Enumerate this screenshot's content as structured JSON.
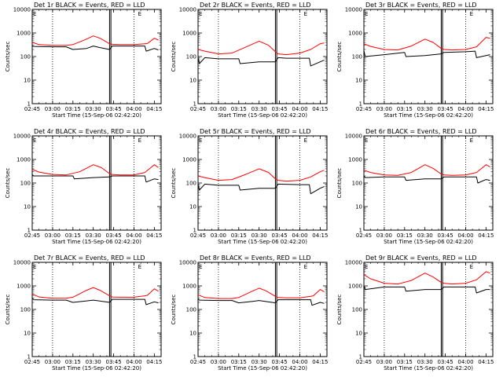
{
  "shared": {
    "title_suffix": " BLACK = Events, RED = LLD",
    "xlabel": "Start Time (15-Sep-06 02:42:20)",
    "ylabel": "Counts/sec",
    "x_tick_labels": [
      "02:45",
      "03:00",
      "03:15",
      "03:30",
      "03:45",
      "04:00",
      "04:15"
    ],
    "y_tick_labels": [
      "1",
      "10",
      "100",
      "1000",
      "10000"
    ],
    "corner_mark": "E",
    "colors": {
      "events": "#000000",
      "lld": "#ff0000",
      "markers": "#000000"
    }
  },
  "chart_data": [
    {
      "type": "line",
      "detector": "Det 1r",
      "title": "Det 1r BLACK = Events, RED = LLD",
      "xlabel": "Start Time (15-Sep-06 02:42:20)",
      "ylabel": "Counts/sec",
      "x_unit": "time",
      "xlim": [
        "02:45",
        "04:20"
      ],
      "ylim": [
        1,
        10000
      ],
      "y_scale": "log",
      "vertical_dotted_lines": [
        "03:00",
        "04:00"
      ],
      "vertical_solid_lines": [
        "03:42",
        "03:43"
      ],
      "series": [
        {
          "color": "#ff0000",
          "x": [
            "02:45",
            "02:50",
            "03:00",
            "03:10",
            "03:15",
            "03:25",
            "03:30",
            "03:35",
            "03:42",
            "03:44",
            "03:50",
            "04:00",
            "04:08",
            "04:10",
            "04:15",
            "04:18"
          ],
          "values": [
            400,
            320,
            300,
            300,
            320,
            550,
            750,
            600,
            350,
            330,
            320,
            320,
            350,
            360,
            600,
            500
          ]
        },
        {
          "color": "#000000",
          "x": [
            "02:45",
            "02:46",
            "03:00",
            "03:10",
            "03:15",
            "03:25",
            "03:30",
            "03:35",
            "03:42",
            "03:44",
            "03:50",
            "04:00",
            "04:08",
            "04:09",
            "04:15",
            "04:18"
          ],
          "values": [
            280,
            270,
            260,
            260,
            200,
            220,
            280,
            240,
            200,
            280,
            280,
            280,
            280,
            170,
            220,
            190
          ]
        }
      ]
    },
    {
      "type": "line",
      "detector": "Det 2r",
      "title": "Det 2r BLACK = Events, RED = LLD",
      "xlabel": "Start Time (15-Sep-06 02:42:20)",
      "ylabel": "Counts/sec",
      "x_unit": "time",
      "xlim": [
        "02:45",
        "04:20"
      ],
      "ylim": [
        1,
        10000
      ],
      "y_scale": "log",
      "vertical_dotted_lines": [
        "03:00",
        "04:00"
      ],
      "vertical_solid_lines": [
        "03:42",
        "03:43"
      ],
      "series": [
        {
          "color": "#ff0000",
          "x": [
            "02:45",
            "02:50",
            "03:00",
            "03:10",
            "03:20",
            "03:30",
            "03:37",
            "03:42",
            "03:44",
            "03:50",
            "04:00",
            "04:08",
            "04:15",
            "04:18"
          ],
          "values": [
            200,
            170,
            130,
            140,
            250,
            450,
            300,
            160,
            130,
            120,
            140,
            200,
            350,
            380
          ]
        },
        {
          "color": "#000000",
          "x": [
            "02:45",
            "02:46",
            "02:50",
            "03:00",
            "03:15",
            "03:16",
            "03:30",
            "03:42",
            "03:44",
            "03:50",
            "04:00",
            "04:07",
            "04:08",
            "04:15",
            "04:18"
          ],
          "values": [
            90,
            50,
            90,
            80,
            80,
            50,
            60,
            60,
            90,
            85,
            85,
            85,
            40,
            60,
            70
          ]
        }
      ]
    },
    {
      "type": "line",
      "detector": "Det 3r",
      "title": "Det 3r BLACK = Events, RED = LLD",
      "xlabel": "Start Time (15-Sep-06 02:42:20)",
      "ylabel": "Counts/sec",
      "x_unit": "time",
      "xlim": [
        "02:45",
        "04:20"
      ],
      "ylim": [
        1,
        10000
      ],
      "y_scale": "log",
      "vertical_dotted_lines": [
        "03:00",
        "04:00"
      ],
      "vertical_solid_lines": [
        "03:42",
        "03:43"
      ],
      "series": [
        {
          "color": "#ff0000",
          "x": [
            "02:45",
            "02:50",
            "03:00",
            "03:10",
            "03:20",
            "03:30",
            "03:36",
            "03:42",
            "03:44",
            "03:50",
            "04:00",
            "04:08",
            "04:15",
            "04:18"
          ],
          "values": [
            350,
            270,
            200,
            190,
            280,
            550,
            400,
            220,
            200,
            190,
            200,
            260,
            650,
            600
          ]
        },
        {
          "color": "#000000",
          "x": [
            "02:45",
            "02:46",
            "03:00",
            "03:15",
            "03:16",
            "03:30",
            "03:42",
            "03:44",
            "04:00",
            "04:07",
            "04:08",
            "04:15",
            "04:18"
          ],
          "values": [
            180,
            100,
            120,
            150,
            100,
            110,
            130,
            150,
            160,
            170,
            90,
            110,
            120
          ]
        }
      ]
    },
    {
      "type": "line",
      "detector": "Det 4r",
      "title": "Det 4r BLACK = Events, RED = LLD",
      "xlabel": "Start Time (15-Sep-06 02:42:20)",
      "ylabel": "Counts/sec",
      "x_unit": "time",
      "xlim": [
        "02:45",
        "04:20"
      ],
      "ylim": [
        1,
        10000
      ],
      "y_scale": "log",
      "vertical_dotted_lines": [
        "03:00",
        "04:00"
      ],
      "vertical_solid_lines": [
        "03:42",
        "03:43"
      ],
      "series": [
        {
          "color": "#ff0000",
          "x": [
            "02:45",
            "02:50",
            "03:00",
            "03:10",
            "03:20",
            "03:30",
            "03:36",
            "03:42",
            "03:44",
            "03:50",
            "04:00",
            "04:08",
            "04:15",
            "04:18"
          ],
          "values": [
            380,
            290,
            230,
            220,
            300,
            600,
            450,
            250,
            230,
            220,
            220,
            280,
            600,
            450
          ]
        },
        {
          "color": "#000000",
          "x": [
            "02:45",
            "02:46",
            "03:00",
            "03:15",
            "03:16",
            "03:30",
            "03:42",
            "03:44",
            "04:00",
            "04:08",
            "04:09",
            "04:15",
            "04:18"
          ],
          "values": [
            230,
            200,
            200,
            200,
            150,
            170,
            180,
            200,
            200,
            200,
            110,
            150,
            140
          ]
        }
      ]
    },
    {
      "type": "line",
      "detector": "Det 5r",
      "title": "Det 5r BLACK = Events, RED = LLD",
      "xlabel": "Start Time (15-Sep-06 02:42:20)",
      "ylabel": "Counts/sec",
      "x_unit": "time",
      "xlim": [
        "02:45",
        "04:20"
      ],
      "ylim": [
        1,
        10000
      ],
      "y_scale": "log",
      "vertical_dotted_lines": [
        "03:00",
        "04:00"
      ],
      "vertical_solid_lines": [
        "03:42",
        "03:43"
      ],
      "series": [
        {
          "color": "#ff0000",
          "x": [
            "02:45",
            "02:50",
            "03:00",
            "03:10",
            "03:20",
            "03:30",
            "03:37",
            "03:42",
            "03:44",
            "03:50",
            "04:00",
            "04:08",
            "04:15",
            "04:18"
          ],
          "values": [
            200,
            170,
            130,
            140,
            230,
            400,
            280,
            150,
            130,
            120,
            130,
            180,
            300,
            350
          ]
        },
        {
          "color": "#000000",
          "x": [
            "02:45",
            "02:46",
            "02:50",
            "03:00",
            "03:15",
            "03:16",
            "03:30",
            "03:42",
            "03:44",
            "04:00",
            "04:07",
            "04:08",
            "04:15",
            "04:18"
          ],
          "values": [
            90,
            50,
            90,
            80,
            80,
            50,
            60,
            60,
            90,
            85,
            85,
            35,
            60,
            70
          ]
        }
      ]
    },
    {
      "type": "line",
      "detector": "Det 6r",
      "title": "Det 6r BLACK = Events, RED = LLD",
      "xlabel": "Start Time (15-Sep-06 02:42:20)",
      "ylabel": "Counts/sec",
      "x_unit": "time",
      "xlim": [
        "02:45",
        "04:20"
      ],
      "ylim": [
        1,
        10000
      ],
      "y_scale": "log",
      "vertical_dotted_lines": [
        "03:00",
        "04:00"
      ],
      "vertical_solid_lines": [
        "03:42",
        "03:43"
      ],
      "series": [
        {
          "color": "#ff0000",
          "x": [
            "02:45",
            "02:50",
            "03:00",
            "03:10",
            "03:20",
            "03:30",
            "03:36",
            "03:42",
            "03:44",
            "03:50",
            "04:00",
            "04:08",
            "04:15",
            "04:18"
          ],
          "values": [
            350,
            280,
            220,
            210,
            280,
            600,
            420,
            240,
            220,
            210,
            220,
            280,
            600,
            480
          ]
        },
        {
          "color": "#000000",
          "x": [
            "02:45",
            "02:46",
            "03:00",
            "03:15",
            "03:16",
            "03:30",
            "03:42",
            "03:44",
            "04:00",
            "04:08",
            "04:09",
            "04:15",
            "04:18"
          ],
          "values": [
            200,
            170,
            180,
            180,
            130,
            150,
            150,
            180,
            180,
            180,
            100,
            140,
            130
          ]
        }
      ]
    },
    {
      "type": "line",
      "detector": "Det 7r",
      "title": "Det 7r BLACK = Events, RED = LLD",
      "xlabel": "Start Time (15-Sep-06 02:42:20)",
      "ylabel": "Counts/sec",
      "x_unit": "time",
      "xlim": [
        "02:45",
        "04:20"
      ],
      "ylim": [
        1,
        10000
      ],
      "y_scale": "log",
      "vertical_dotted_lines": [
        "03:00",
        "04:00"
      ],
      "vertical_solid_lines": [
        "03:42",
        "03:43"
      ],
      "series": [
        {
          "color": "#ff0000",
          "x": [
            "02:45",
            "02:50",
            "03:00",
            "03:10",
            "03:15",
            "03:25",
            "03:30",
            "03:35",
            "03:42",
            "03:44",
            "03:50",
            "04:00",
            "04:08",
            "04:10",
            "04:15",
            "04:18"
          ],
          "values": [
            450,
            340,
            300,
            300,
            330,
            650,
            850,
            650,
            380,
            340,
            330,
            330,
            380,
            400,
            750,
            600
          ]
        },
        {
          "color": "#000000",
          "x": [
            "02:45",
            "02:46",
            "03:00",
            "03:10",
            "03:15",
            "03:25",
            "03:30",
            "03:42",
            "03:44",
            "04:00",
            "04:08",
            "04:09",
            "04:15",
            "04:18"
          ],
          "values": [
            300,
            260,
            250,
            250,
            200,
            230,
            250,
            200,
            270,
            270,
            270,
            160,
            210,
            190
          ]
        }
      ]
    },
    {
      "type": "line",
      "detector": "Det 8r",
      "title": "Det 8r BLACK = Events, RED = LLD",
      "xlabel": "Start Time (15-Sep-06 02:42:20)",
      "ylabel": "Counts/sec",
      "x_unit": "time",
      "xlim": [
        "02:45",
        "04:20"
      ],
      "ylim": [
        1,
        10000
      ],
      "y_scale": "log",
      "vertical_dotted_lines": [
        "03:00",
        "04:00"
      ],
      "vertical_solid_lines": [
        "03:42",
        "03:43"
      ],
      "series": [
        {
          "color": "#ff0000",
          "x": [
            "02:45",
            "02:50",
            "03:00",
            "03:10",
            "03:15",
            "03:25",
            "03:30",
            "03:35",
            "03:42",
            "03:44",
            "03:50",
            "04:00",
            "04:08",
            "04:10",
            "04:15",
            "04:18"
          ],
          "values": [
            420,
            320,
            290,
            290,
            320,
            600,
            800,
            620,
            360,
            320,
            310,
            310,
            360,
            380,
            700,
            560
          ]
        },
        {
          "color": "#000000",
          "x": [
            "02:45",
            "02:46",
            "03:00",
            "03:10",
            "03:15",
            "03:25",
            "03:30",
            "03:42",
            "03:44",
            "04:00",
            "04:08",
            "04:09",
            "04:15",
            "04:18"
          ],
          "values": [
            280,
            250,
            240,
            240,
            190,
            220,
            240,
            190,
            260,
            260,
            260,
            150,
            200,
            180
          ]
        }
      ]
    },
    {
      "type": "line",
      "detector": "Det 9r",
      "title": "Det 9r BLACK = Events, RED = LLD",
      "xlabel": "Start Time (15-Sep-06 02:42:20)",
      "ylabel": "Counts/sec",
      "x_unit": "time",
      "xlim": [
        "02:45",
        "04:20"
      ],
      "ylim": [
        1,
        10000
      ],
      "y_scale": "log",
      "vertical_dotted_lines": [
        "03:00",
        "04:00"
      ],
      "vertical_solid_lines": [
        "03:42",
        "03:43"
      ],
      "series": [
        {
          "color": "#ff0000",
          "x": [
            "02:45",
            "02:50",
            "03:00",
            "03:10",
            "03:20",
            "03:30",
            "03:36",
            "03:42",
            "03:44",
            "03:50",
            "04:00",
            "04:08",
            "04:15",
            "04:18"
          ],
          "values": [
            3000,
            2000,
            1300,
            1200,
            1700,
            3500,
            2400,
            1400,
            1300,
            1200,
            1300,
            1800,
            4000,
            3500
          ]
        },
        {
          "color": "#000000",
          "x": [
            "02:45",
            "02:46",
            "03:00",
            "03:15",
            "03:16",
            "03:30",
            "03:42",
            "03:44",
            "04:00",
            "04:07",
            "04:08",
            "04:15",
            "04:18"
          ],
          "values": [
            1000,
            700,
            900,
            900,
            600,
            700,
            700,
            900,
            900,
            900,
            500,
            700,
            700
          ]
        }
      ]
    }
  ]
}
